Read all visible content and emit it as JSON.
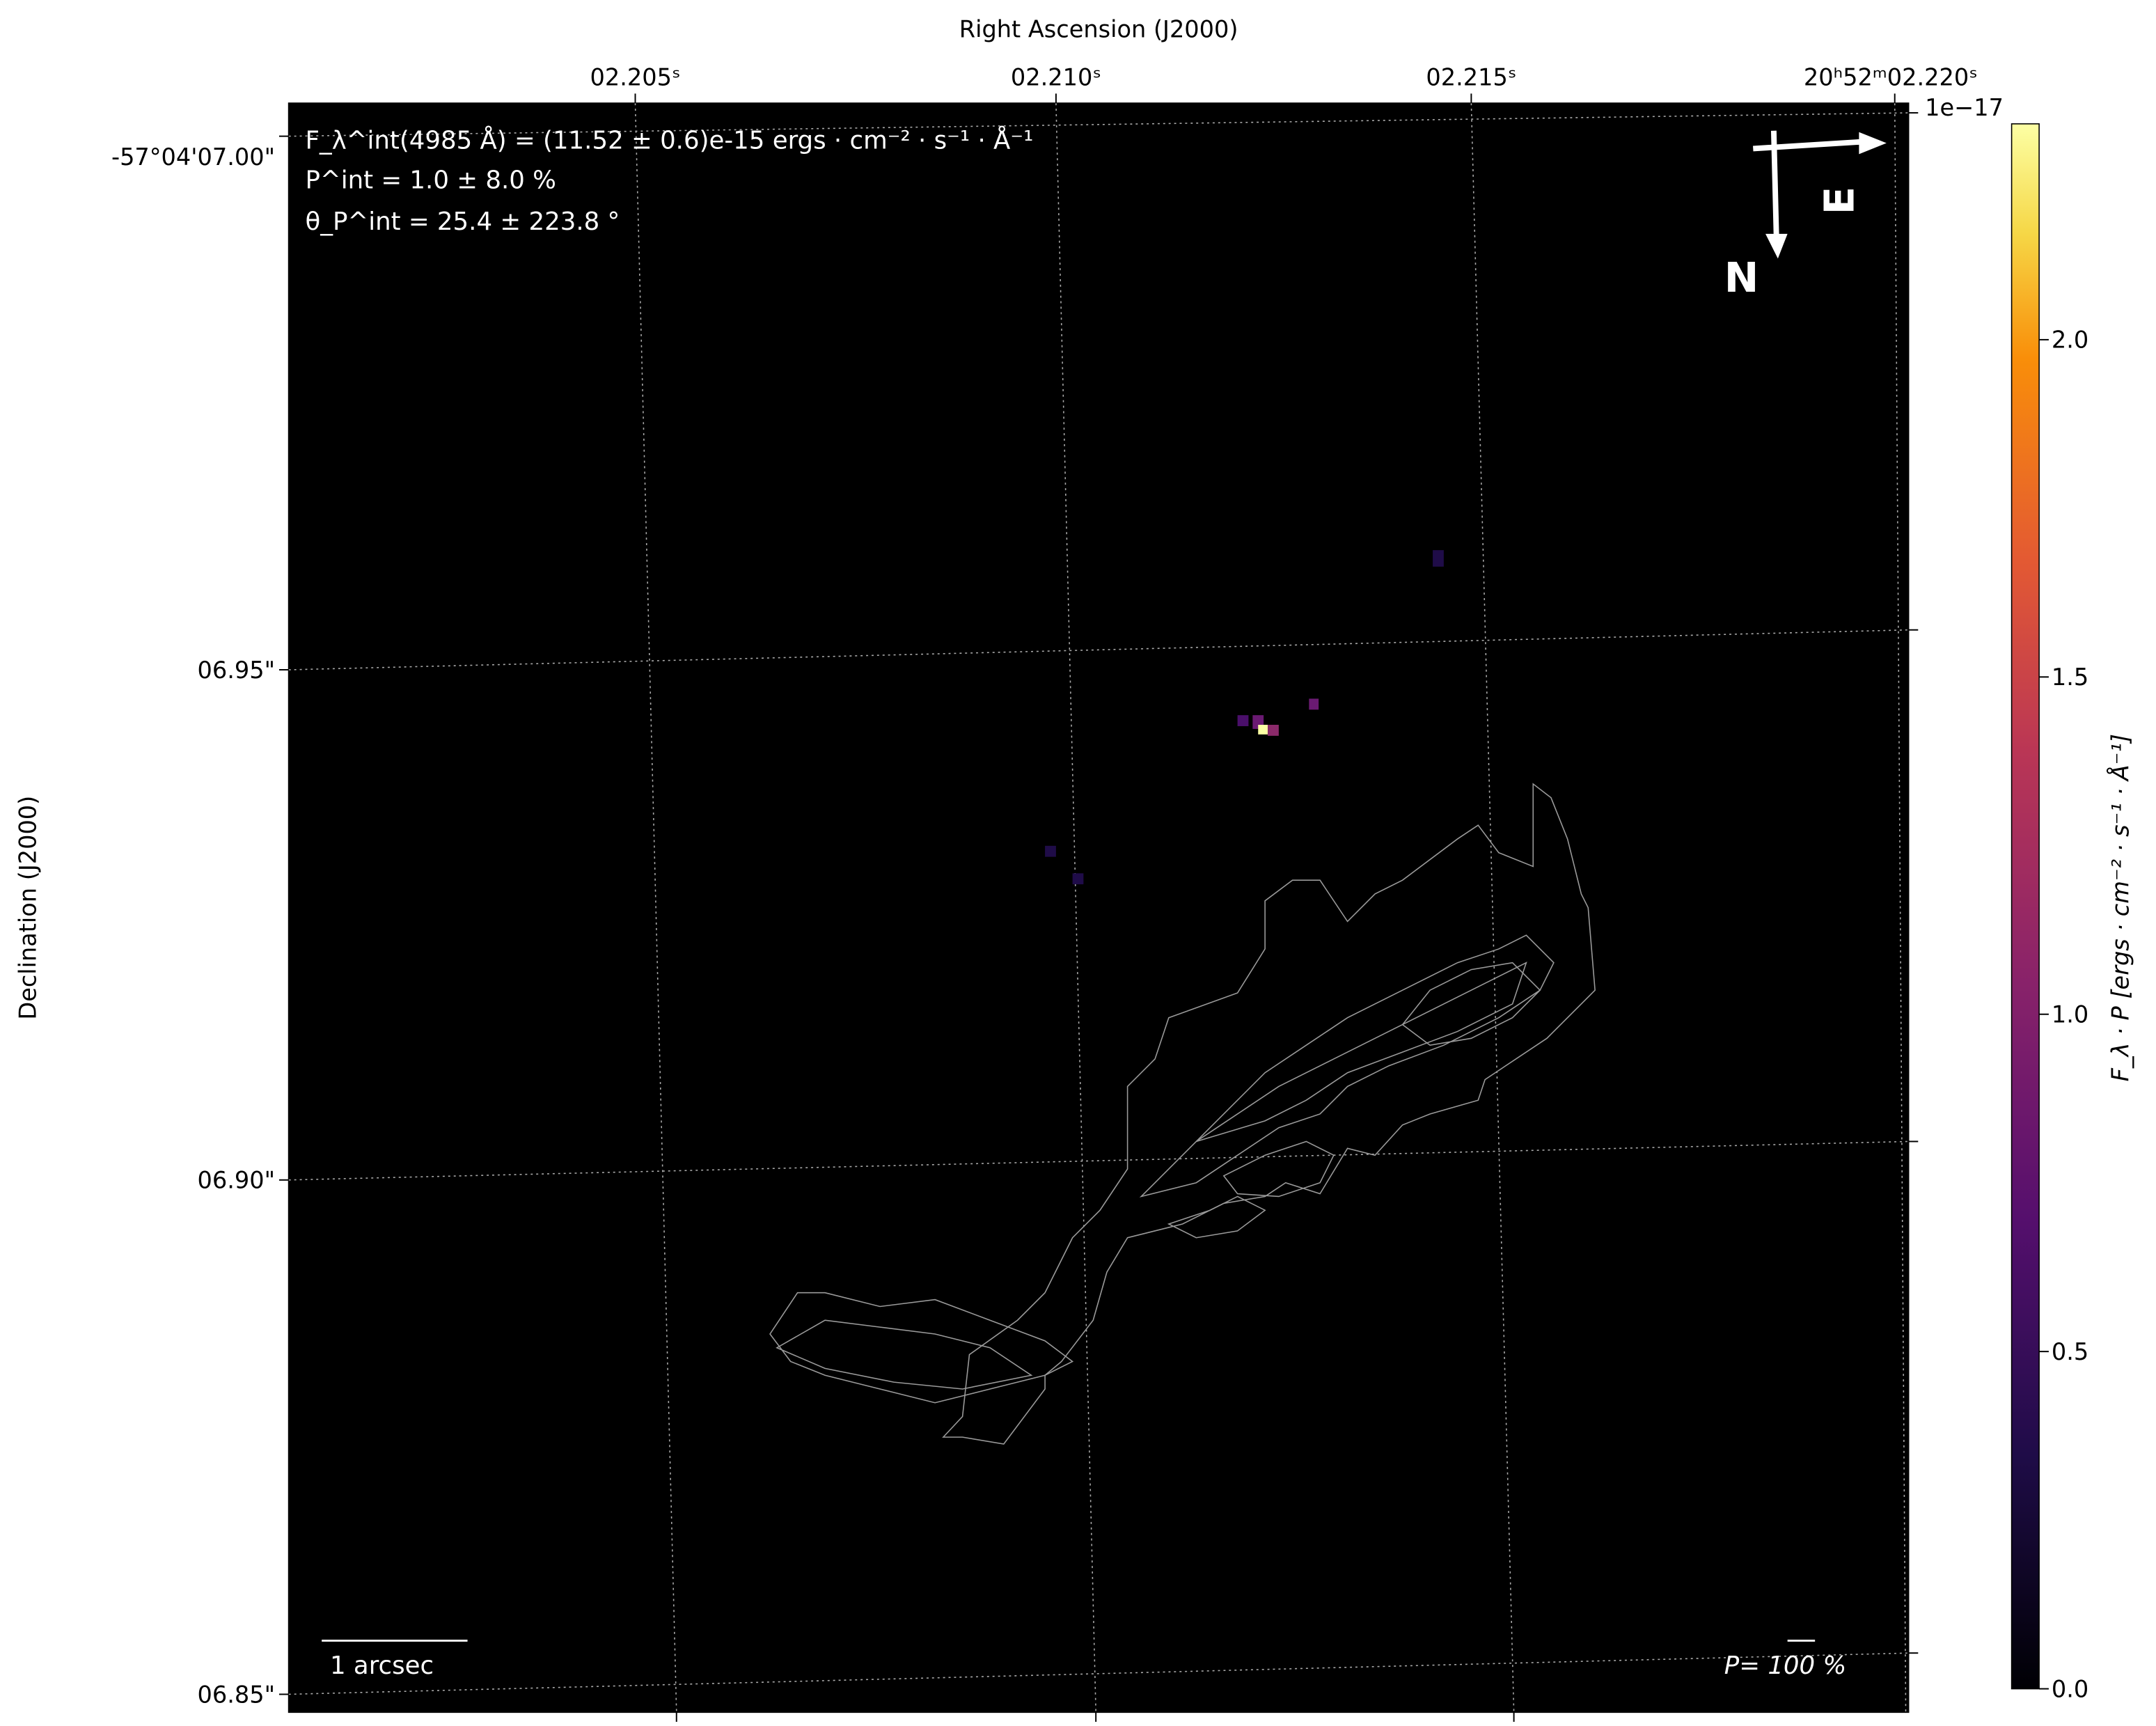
{
  "chart_data": {
    "type": "heatmap",
    "title": "",
    "xlabel": "Right Ascension (J2000)",
    "ylabel": "Declination (J2000)",
    "x_ticks": [
      "02.205ˢ",
      "02.210ˢ",
      "02.215ˢ",
      "20ʰ52ᵐ02.220ˢ"
    ],
    "y_ticks": [
      "-57°04'07.00\"",
      "06.95\"",
      "06.90\"",
      "06.85\""
    ],
    "colorbar": {
      "label": "F_λ · P [ergs · cm⁻² · s⁻¹ · Å⁻¹]",
      "colormap": "inferno",
      "range": [
        0.0,
        2.32
      ],
      "ticks": [
        "0.0",
        "0.5",
        "1.0",
        "1.5",
        "2.0"
      ],
      "offset_text": "1e−17"
    },
    "grid": true,
    "annotations": {
      "flux": "F_λ^int(4985 Å) = (11.52 ± 0.6)e-15 ergs · cm⁻² · s⁻¹ · Å⁻¹",
      "pol_degree": "P^int = 1.0 ± 8.0 %",
      "pol_angle": "θ_P^int = 25.4 ± 223.8 °",
      "scale_bar": "1 arcsec",
      "vector_scale": "P= 100 %",
      "north": "N",
      "east": "E"
    },
    "peak": {
      "value": 2.3,
      "color": "#fcffa4"
    }
  }
}
